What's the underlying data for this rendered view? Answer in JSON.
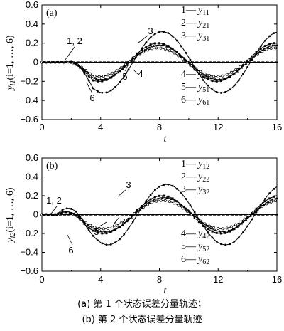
{
  "chart_data": [
    {
      "type": "line",
      "panel_label": "(a)",
      "xlabel": "t",
      "ylabel_main": "y",
      "ylabel_sub": "i1",
      "ylabel_paren": "(i=1, …, 6)",
      "xlim": [
        0,
        16
      ],
      "ylim": [
        -0.6,
        0.6
      ],
      "xticks": [
        0,
        4,
        8,
        12,
        16
      ],
      "yticks": [
        -0.6,
        -0.4,
        -0.2,
        0,
        0.2,
        0.4,
        0.6
      ],
      "ytick_labels": [
        "−0.6",
        "−0.4",
        "−0.2",
        "0",
        "0.2",
        "0.4",
        "0.6"
      ],
      "legend_left": [
        {
          "num": "1",
          "name": "y",
          "sub": "11"
        },
        {
          "num": "2",
          "name": "y",
          "sub": "21"
        },
        {
          "num": "3",
          "name": "y",
          "sub": "31"
        }
      ],
      "legend_right": [
        {
          "num": "4",
          "name": "y",
          "sub": "41"
        },
        {
          "num": "5",
          "name": "y",
          "sub": "51"
        },
        {
          "num": "6",
          "name": "y",
          "sub": "61"
        }
      ],
      "curve_labels": [
        "1, 2",
        "3",
        "4",
        "5",
        "6"
      ],
      "series": [
        {
          "name": "1",
          "t_on": 1.5,
          "amplitude": 0,
          "period": 8,
          "phase_zero": 1.5,
          "marker": "dot"
        },
        {
          "name": "2",
          "t_on": 1.5,
          "amplitude": 0,
          "period": 8,
          "phase_zero": 1.5,
          "marker": "dot"
        },
        {
          "name": "3",
          "t_on": 1.5,
          "amplitude": 0.2,
          "period": 8,
          "phase_zero": 1.9,
          "marker": "square"
        },
        {
          "name": "4",
          "t_on": 1.5,
          "amplitude": 0.15,
          "period": 8,
          "phase_zero": 1.9,
          "marker": "circle"
        },
        {
          "name": "5",
          "t_on": 1.5,
          "amplitude": 0.18,
          "period": 8,
          "phase_zero": 2.0,
          "marker": "triangle"
        },
        {
          "name": "6",
          "t_on": 1.5,
          "amplitude": 0.32,
          "period": 8,
          "phase_zero": 2.2,
          "marker": "plus"
        }
      ]
    },
    {
      "type": "line",
      "panel_label": "(b)",
      "xlabel": "t",
      "ylabel_main": "y",
      "ylabel_sub": "i2",
      "ylabel_paren": "(i=1, …, 6)",
      "xlim": [
        0,
        16
      ],
      "ylim": [
        -0.6,
        0.6
      ],
      "xticks": [
        0,
        4,
        8,
        12,
        16
      ],
      "yticks": [
        -0.6,
        -0.4,
        -0.2,
        0,
        0.2,
        0.4,
        0.6
      ],
      "ytick_labels": [
        "−0.6",
        "−0.4",
        "−0.2",
        "0",
        "0.2",
        "0.4",
        "0.6"
      ],
      "legend_left": [
        {
          "num": "1",
          "name": "y",
          "sub": "12"
        },
        {
          "num": "2",
          "name": "y",
          "sub": "22"
        },
        {
          "num": "3",
          "name": "y",
          "sub": "32"
        }
      ],
      "legend_right": [
        {
          "num": "4",
          "name": "y",
          "sub": "42"
        },
        {
          "num": "5",
          "name": "y",
          "sub": "52"
        },
        {
          "num": "6",
          "name": "y",
          "sub": "62"
        }
      ],
      "curve_labels": [
        "1, 2",
        "3",
        "4",
        "5",
        "6"
      ],
      "series": [
        {
          "name": "1",
          "t_on": 1.0,
          "amplitude": 0,
          "period": 8,
          "phase_zero": 1.0,
          "marker": "dot"
        },
        {
          "name": "2",
          "t_on": 1.0,
          "amplitude": 0,
          "period": 8,
          "phase_zero": 1.0,
          "marker": "dot"
        },
        {
          "name": "3",
          "t_on": 1.0,
          "amplitude": 0.2,
          "period": 8,
          "phase_zero": 2.2,
          "marker": "square"
        },
        {
          "name": "4",
          "t_on": 1.0,
          "amplitude": 0.15,
          "period": 8,
          "phase_zero": 2.2,
          "marker": "circle"
        },
        {
          "name": "5",
          "t_on": 1.0,
          "amplitude": 0.18,
          "period": 8,
          "phase_zero": 2.3,
          "marker": "triangle"
        },
        {
          "name": "6",
          "t_on": 1.0,
          "amplitude": 0.32,
          "period": 8,
          "phase_zero": 2.5,
          "marker": "plus"
        }
      ]
    }
  ],
  "captions": [
    {
      "tag": "(a)",
      "text": "第 1 个状态误差分量轨迹；"
    },
    {
      "tag": "(b)",
      "text": "第 2 个状态误差分量轨迹"
    }
  ]
}
